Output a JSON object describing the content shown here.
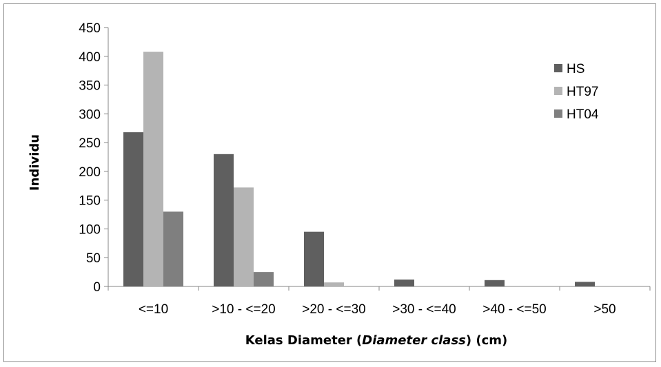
{
  "chart_data": {
    "type": "bar",
    "categories": [
      "<=10",
      ">10 - <=20",
      ">20 - <=30",
      ">30 - <=40",
      ">40 - <=50",
      ">50"
    ],
    "series": [
      {
        "name": "HS",
        "color": "#5f5f5f",
        "values": [
          268,
          230,
          95,
          12,
          11,
          8
        ]
      },
      {
        "name": "HT97",
        "color": "#b4b4b4",
        "values": [
          408,
          172,
          7,
          0,
          0,
          0
        ]
      },
      {
        "name": "HT04",
        "color": "#7f7f7f",
        "values": [
          130,
          25,
          0,
          0,
          0,
          0
        ]
      }
    ],
    "ylabel": "Individu",
    "xlabel": {
      "prefix": "Kelas Diameter (",
      "italic": "Diameter class",
      "suffix": ") (cm)"
    },
    "ylim": [
      0,
      450
    ],
    "yticks": [
      "0",
      "50",
      "100",
      "150",
      "200",
      "250",
      "300",
      "350",
      "400",
      "450"
    ],
    "grid": false,
    "legend": "top-right"
  }
}
